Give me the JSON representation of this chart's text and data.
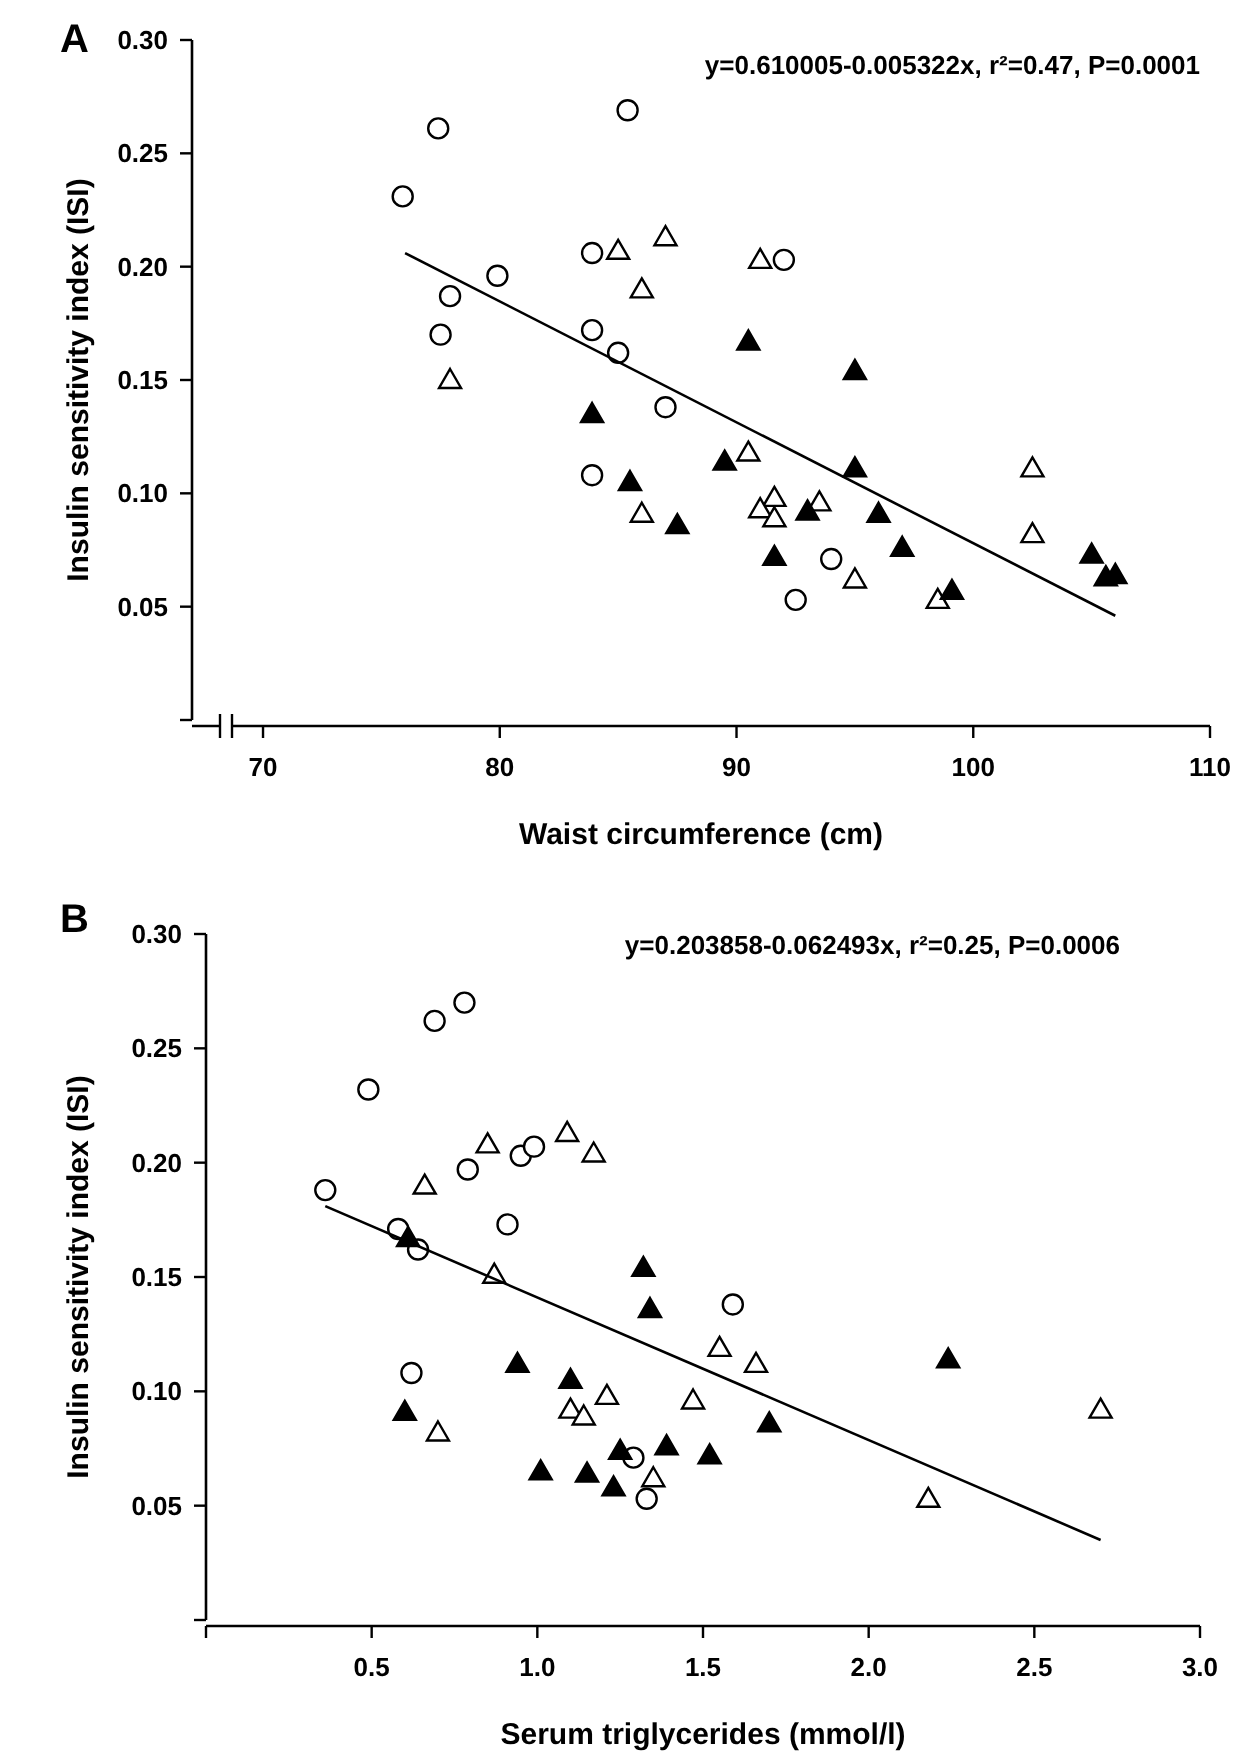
{
  "chart_data": [
    {
      "type": "scatter",
      "title": "A",
      "xlabel": "Waist circumference (cm)",
      "ylabel": "Insulin sensitivity index (ISI)",
      "annotations": [
        "y=0.610005-0.005322x, r²=0.47, P=0.0001"
      ],
      "xlim": [
        67,
        110
      ],
      "xticks": [
        70,
        80,
        90,
        100,
        110
      ],
      "ylim": [
        0,
        0.3
      ],
      "yticks": [
        {
          "value": 0,
          "label": null
        },
        0.05,
        {
          "value": 0.1,
          "label": "0.10"
        },
        0.15,
        {
          "value": 0.2,
          "label": "0.20"
        },
        0.25,
        {
          "value": 0.3,
          "label": "0.30"
        }
      ],
      "grid": false,
      "series": [
        {
          "marker": "circle",
          "color": "#ffffff",
          "x": [
            75.9,
            77.4,
            85.4,
            77.9,
            79.9,
            77.5,
            83.9,
            83.9,
            85.0,
            87.0,
            83.9,
            92.0,
            94.0,
            92.5
          ],
          "values": [
            0.231,
            0.261,
            0.269,
            0.187,
            0.196,
            0.17,
            0.206,
            0.172,
            0.162,
            0.138,
            0.108,
            0.203,
            0.071,
            0.053
          ]
        },
        {
          "marker": "triangle",
          "color": "#ffffff",
          "x": [
            85.0,
            87.0,
            86.0,
            77.9,
            86.0,
            91.0,
            90.5,
            91.6,
            91.0,
            91.6,
            93.5,
            95.0,
            98.5,
            102.5,
            102.5
          ],
          "values": [
            0.207,
            0.213,
            0.19,
            0.15,
            0.091,
            0.203,
            0.118,
            0.098,
            0.093,
            0.089,
            0.096,
            0.062,
            0.053,
            0.111,
            0.082
          ]
        },
        {
          "marker": "triangle",
          "color": "#000000",
          "x": [
            83.9,
            85.5,
            87.5,
            90.5,
            95.0,
            89.5,
            95.0,
            93.0,
            96.0,
            91.6,
            97.0,
            99.1,
            105.0,
            105.6,
            106.0
          ],
          "values": [
            0.135,
            0.105,
            0.086,
            0.167,
            0.154,
            0.114,
            0.111,
            0.092,
            0.091,
            0.072,
            0.076,
            0.057,
            0.073,
            0.063,
            0.064
          ]
        },
        {
          "type": "line",
          "marker": "none",
          "color": "#000000",
          "x": [
            76,
            106
          ],
          "values": [
            0.206,
            0.046
          ]
        }
      ]
    },
    {
      "type": "scatter",
      "title": "B",
      "xlabel": "Serum triglycerides (mmol/l)",
      "ylabel": "Insulin sensitivity index (ISI)",
      "annotations": [
        "y=0.203858-0.062493x, r²=0.25, P=0.0006"
      ],
      "xlim": [
        0,
        3
      ],
      "xticks": [
        {
          "value": 0,
          "label": null
        },
        0.5,
        {
          "value": 1,
          "label": "1.0"
        },
        1.5,
        {
          "value": 2,
          "label": "2.0"
        },
        2.5,
        {
          "value": 3,
          "label": "3.0"
        }
      ],
      "ylim": [
        0,
        0.3
      ],
      "yticks": [
        {
          "value": 0,
          "label": null
        },
        0.05,
        {
          "value": 0.1,
          "label": "0.10"
        },
        0.15,
        {
          "value": 0.2,
          "label": "0.20"
        },
        0.25,
        {
          "value": 0.3,
          "label": "0.30"
        }
      ],
      "grid": false,
      "series": [
        {
          "marker": "circle",
          "color": "#ffffff",
          "x": [
            0.36,
            0.49,
            0.69,
            0.78,
            0.79,
            0.95,
            0.99,
            0.91,
            0.58,
            0.64,
            0.62,
            1.29,
            1.33,
            1.59
          ],
          "values": [
            0.188,
            0.232,
            0.262,
            0.27,
            0.197,
            0.203,
            0.207,
            0.173,
            0.171,
            0.162,
            0.108,
            0.071,
            0.053,
            0.138
          ]
        },
        {
          "marker": "triangle",
          "color": "#ffffff",
          "x": [
            0.85,
            1.09,
            1.17,
            0.66,
            0.87,
            1.21,
            1.1,
            1.14,
            0.7,
            1.35,
            1.55,
            1.66,
            1.47,
            2.18,
            2.7
          ],
          "values": [
            0.208,
            0.213,
            0.204,
            0.19,
            0.151,
            0.098,
            0.092,
            0.089,
            0.082,
            0.062,
            0.119,
            0.112,
            0.096,
            0.053,
            0.092
          ]
        },
        {
          "marker": "triangle",
          "color": "#000000",
          "x": [
            0.61,
            1.32,
            1.34,
            0.94,
            1.1,
            0.6,
            1.25,
            1.39,
            1.01,
            1.15,
            1.23,
            2.24,
            1.7,
            1.52
          ],
          "values": [
            0.167,
            0.154,
            0.136,
            0.112,
            0.105,
            0.091,
            0.074,
            0.076,
            0.065,
            0.064,
            0.058,
            0.114,
            0.086,
            0.072
          ]
        },
        {
          "type": "line",
          "marker": "none",
          "color": "#000000",
          "x": [
            0.36,
            2.7
          ],
          "values": [
            0.181,
            0.035
          ]
        }
      ]
    }
  ]
}
